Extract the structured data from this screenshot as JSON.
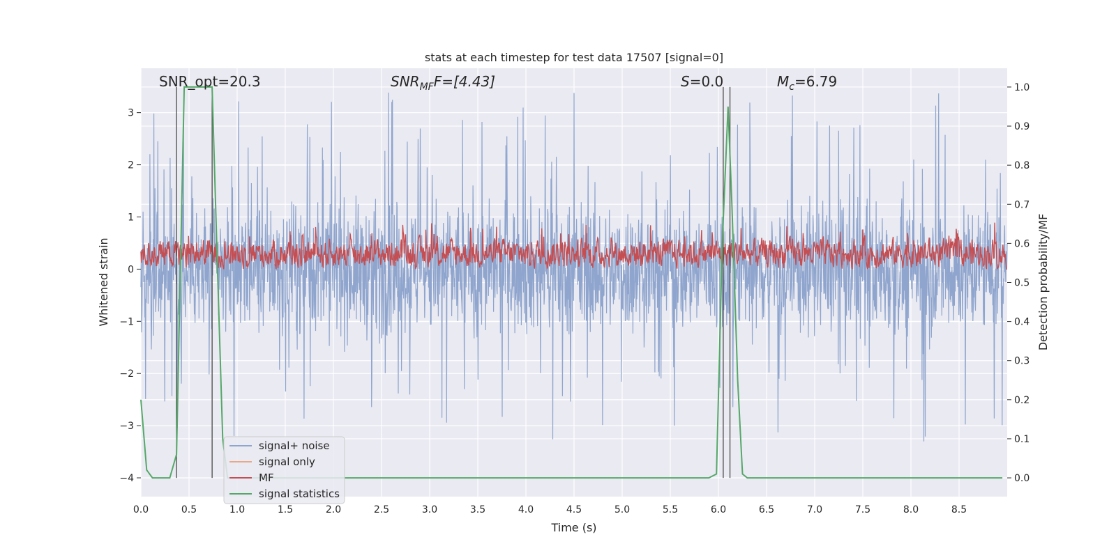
{
  "chart_data": {
    "type": "line",
    "title": "stats at each timestep for test data 17507 [signal=0]",
    "xlabel": "Time (s)",
    "ylabel_left": "Whitened strain",
    "ylabel_right": "Detection probability/MF",
    "xlim": [
      0.0,
      9.0
    ],
    "ylim_left": [
      -4.36,
      3.85
    ],
    "ylim_right": [
      -0.048,
      1.048
    ],
    "x_ticks": [
      "0.0",
      "0.5",
      "1.0",
      "1.5",
      "2.0",
      "2.5",
      "3.0",
      "3.5",
      "4.0",
      "4.5",
      "5.0",
      "5.5",
      "6.0",
      "6.5",
      "7.0",
      "7.5",
      "8.0",
      "8.5"
    ],
    "y_ticks_left": [
      "3",
      "2",
      "1",
      "0",
      "−1",
      "−2",
      "−3",
      "−4"
    ],
    "y_ticks_right": [
      "1.0",
      "0.9",
      "0.8",
      "0.7",
      "0.6",
      "0.5",
      "0.4",
      "0.3",
      "0.2",
      "0.1",
      "0.0"
    ],
    "grid": true,
    "legend_position": "lower-left",
    "annotations": {
      "snr_opt": "SNR_opt=20.3",
      "snr_mf_main": "SNR",
      "snr_mf_sub": "MF",
      "snr_mf_tail": "F=[4.43]",
      "s_main": "S",
      "s_tail": "=0.0",
      "mc_main": "M",
      "mc_sub": "c",
      "mc_tail": "=6.79"
    },
    "vertical_markers_s": [
      0.37,
      0.74,
      6.05,
      6.12
    ],
    "series": [
      {
        "name": "signal+ noise",
        "color": "#8fa5cd",
        "axis": "left",
        "description": "whitened strain noise, roughly within -1.8..1.8 with spikes to about 3.5 and -4",
        "approx_range": [
          -4.0,
          3.5
        ]
      },
      {
        "name": "signal only",
        "color": "#e8a98a",
        "axis": "left",
        "values": []
      },
      {
        "name": "MF",
        "color": "#c44e52",
        "axis": "left",
        "description": "matched filter output, roughly between 0.0 and 0.6 with peaks near 0.9",
        "approx_range": [
          0.0,
          0.95
        ]
      },
      {
        "name": "signal statistics",
        "color": "#55a868",
        "axis": "right",
        "x": [
          0.0,
          0.06,
          0.12,
          0.18,
          0.3,
          0.37,
          0.45,
          0.5,
          0.6,
          0.7,
          0.74,
          0.8,
          0.85,
          0.9,
          5.9,
          5.98,
          6.04,
          6.1,
          6.14,
          6.2,
          6.25,
          6.3,
          8.95
        ],
        "values": [
          0.2,
          0.02,
          0.0,
          0.0,
          0.0,
          0.06,
          1.0,
          1.0,
          1.0,
          1.0,
          1.0,
          0.5,
          0.1,
          0.0,
          0.0,
          0.01,
          0.6,
          0.95,
          0.7,
          0.25,
          0.01,
          0.0,
          0.0
        ]
      }
    ]
  }
}
